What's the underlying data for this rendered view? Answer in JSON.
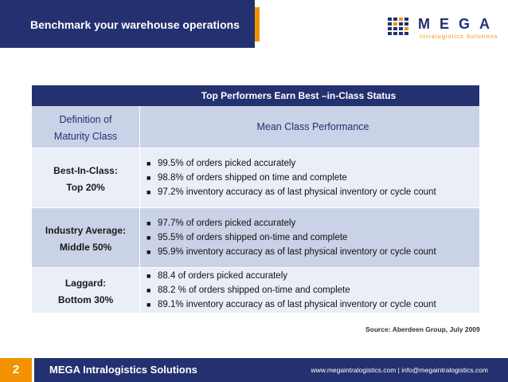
{
  "header": {
    "title": "Benchmark your warehouse operations",
    "logo_text": "MEGA",
    "logo_sub": "Intralogistics Solutions"
  },
  "table": {
    "title": "Top Performers Earn Best –in-Class Status",
    "col1_header": [
      "Definition of",
      "Maturity Class"
    ],
    "col2_header": "Mean Class Performance",
    "rows": [
      {
        "label": [
          "Best-In-Class:",
          "Top 20%"
        ],
        "items": [
          "99.5% of orders picked accurately",
          "98.8% of orders shipped on time and complete",
          "97.2% inventory accuracy as of last physical inventory or cycle count"
        ]
      },
      {
        "label": [
          "Industry Average:",
          "Middle 50%"
        ],
        "items": [
          "97.7% of orders picked accurately",
          "95.5% of orders shipped on-time and complete",
          "95.9% inventory accuracy as of last physical inventory or cycle count"
        ]
      },
      {
        "label": [
          "Laggard:",
          "Bottom 30%"
        ],
        "items": [
          "88.4 of orders picked accurately",
          "88.2 % of orders shipped on-time and complete",
          "89.1% inventory accuracy as of last physical inventory or cycle count"
        ]
      }
    ]
  },
  "source": "Source: Aberdeen Group, July 2009",
  "footer": {
    "page_number": "2",
    "company": "MEGA Intralogistics  Solutions",
    "contact": "www.megaintralogistics.com | info@megaintralogistics.com"
  },
  "colors": {
    "navy": "#233170",
    "orange": "#f39200",
    "row_dark": "#c9d2e6",
    "row_light": "#eaeef6"
  }
}
